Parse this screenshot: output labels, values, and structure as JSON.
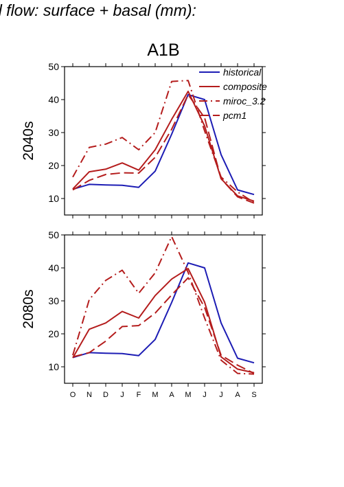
{
  "header": {
    "title": "d flow: surface + basal (mm):"
  },
  "scenario": "A1B",
  "legend": [
    "historical",
    "composite",
    "miroc_3.2",
    "pcm1"
  ],
  "colors": {
    "historical": "#1c1cb4",
    "scenario": "#b41c1c"
  },
  "chart_data": [
    {
      "type": "line",
      "row_label": "2040s",
      "title": "A1B",
      "categories": [
        "O",
        "N",
        "D",
        "J",
        "F",
        "M",
        "A",
        "M",
        "J",
        "J",
        "A",
        "S"
      ],
      "ylim": [
        5,
        50
      ],
      "yticks": [
        10,
        20,
        30,
        40,
        50
      ],
      "legend_position": "top-right",
      "series": [
        {
          "name": "historical",
          "color": "#1c1cb4",
          "dash": "solid",
          "values": [
            12.8,
            14.3,
            14.1,
            14.0,
            13.4,
            18.3,
            29.5,
            41.5,
            40.0,
            23.3,
            12.6,
            11.2
          ]
        },
        {
          "name": "composite",
          "color": "#b41c1c",
          "dash": "solid",
          "values": [
            12.9,
            18.1,
            18.9,
            20.8,
            18.6,
            24.8,
            34.0,
            42.5,
            32.0,
            16.0,
            10.8,
            9.2
          ]
        },
        {
          "name": "miroc_3.2",
          "color": "#b41c1c",
          "dash": "dashdot",
          "values": [
            16.5,
            25.5,
            26.5,
            28.5,
            24.8,
            30.0,
            45.5,
            45.8,
            30.5,
            16.5,
            12.0,
            8.8
          ]
        },
        {
          "name": "pcm1",
          "color": "#b41c1c",
          "dash": "dashed",
          "values": [
            12.6,
            15.5,
            17.3,
            17.8,
            17.7,
            22.5,
            31.0,
            41.5,
            34.5,
            16.0,
            10.5,
            8.6
          ]
        }
      ]
    },
    {
      "type": "line",
      "row_label": "2080s",
      "categories": [
        "O",
        "N",
        "D",
        "J",
        "F",
        "M",
        "A",
        "M",
        "J",
        "J",
        "A",
        "S"
      ],
      "ylim": [
        5,
        50
      ],
      "yticks": [
        10,
        20,
        30,
        40,
        50
      ],
      "series": [
        {
          "name": "historical",
          "color": "#1c1cb4",
          "dash": "solid",
          "values": [
            12.8,
            14.3,
            14.1,
            14.0,
            13.4,
            18.3,
            29.5,
            41.5,
            40.0,
            23.3,
            12.6,
            11.2
          ]
        },
        {
          "name": "composite",
          "color": "#b41c1c",
          "dash": "solid",
          "values": [
            12.7,
            21.4,
            23.3,
            26.8,
            24.8,
            31.6,
            36.6,
            39.8,
            29.6,
            13.0,
            9.3,
            8.2
          ]
        },
        {
          "name": "miroc_3.2",
          "color": "#b41c1c",
          "dash": "dashdot",
          "values": [
            13.5,
            30.4,
            36.2,
            39.3,
            32.3,
            38.5,
            49.5,
            38.6,
            24.8,
            12.0,
            8.0,
            7.8
          ]
        },
        {
          "name": "pcm1",
          "color": "#b41c1c",
          "dash": "dashed",
          "values": [
            13.0,
            14.3,
            17.8,
            22.2,
            22.5,
            26.3,
            31.8,
            37.0,
            28.0,
            13.5,
            10.5,
            8.0
          ]
        }
      ]
    }
  ]
}
